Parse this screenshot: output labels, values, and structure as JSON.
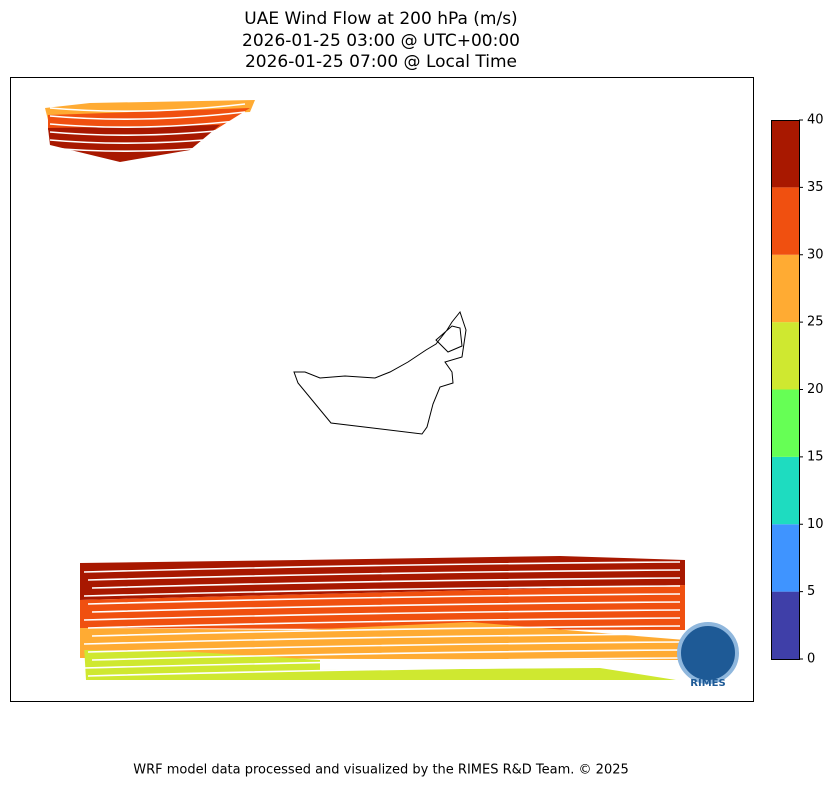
{
  "title": {
    "lines": [
      "UAE Wind Flow at 200 hPa (m/s)",
      "2026-01-25 03:00 @ UTC+00:00",
      "2026-01-25 07:00 @ Local Time"
    ]
  },
  "colorbar": {
    "lim": [
      0,
      40
    ],
    "ticks": [
      0,
      5,
      10,
      15,
      20,
      25,
      30,
      35,
      40
    ],
    "colors": [
      "#3f3fa8",
      "#3f94ff",
      "#1edcc0",
      "#66ff55",
      "#cfe830",
      "#ffab33",
      "#f05010",
      "#a81800"
    ]
  },
  "logo": "RIMES",
  "footer": "WRF model data processed and visualized by the RIMES R&D Team. © 2025"
}
